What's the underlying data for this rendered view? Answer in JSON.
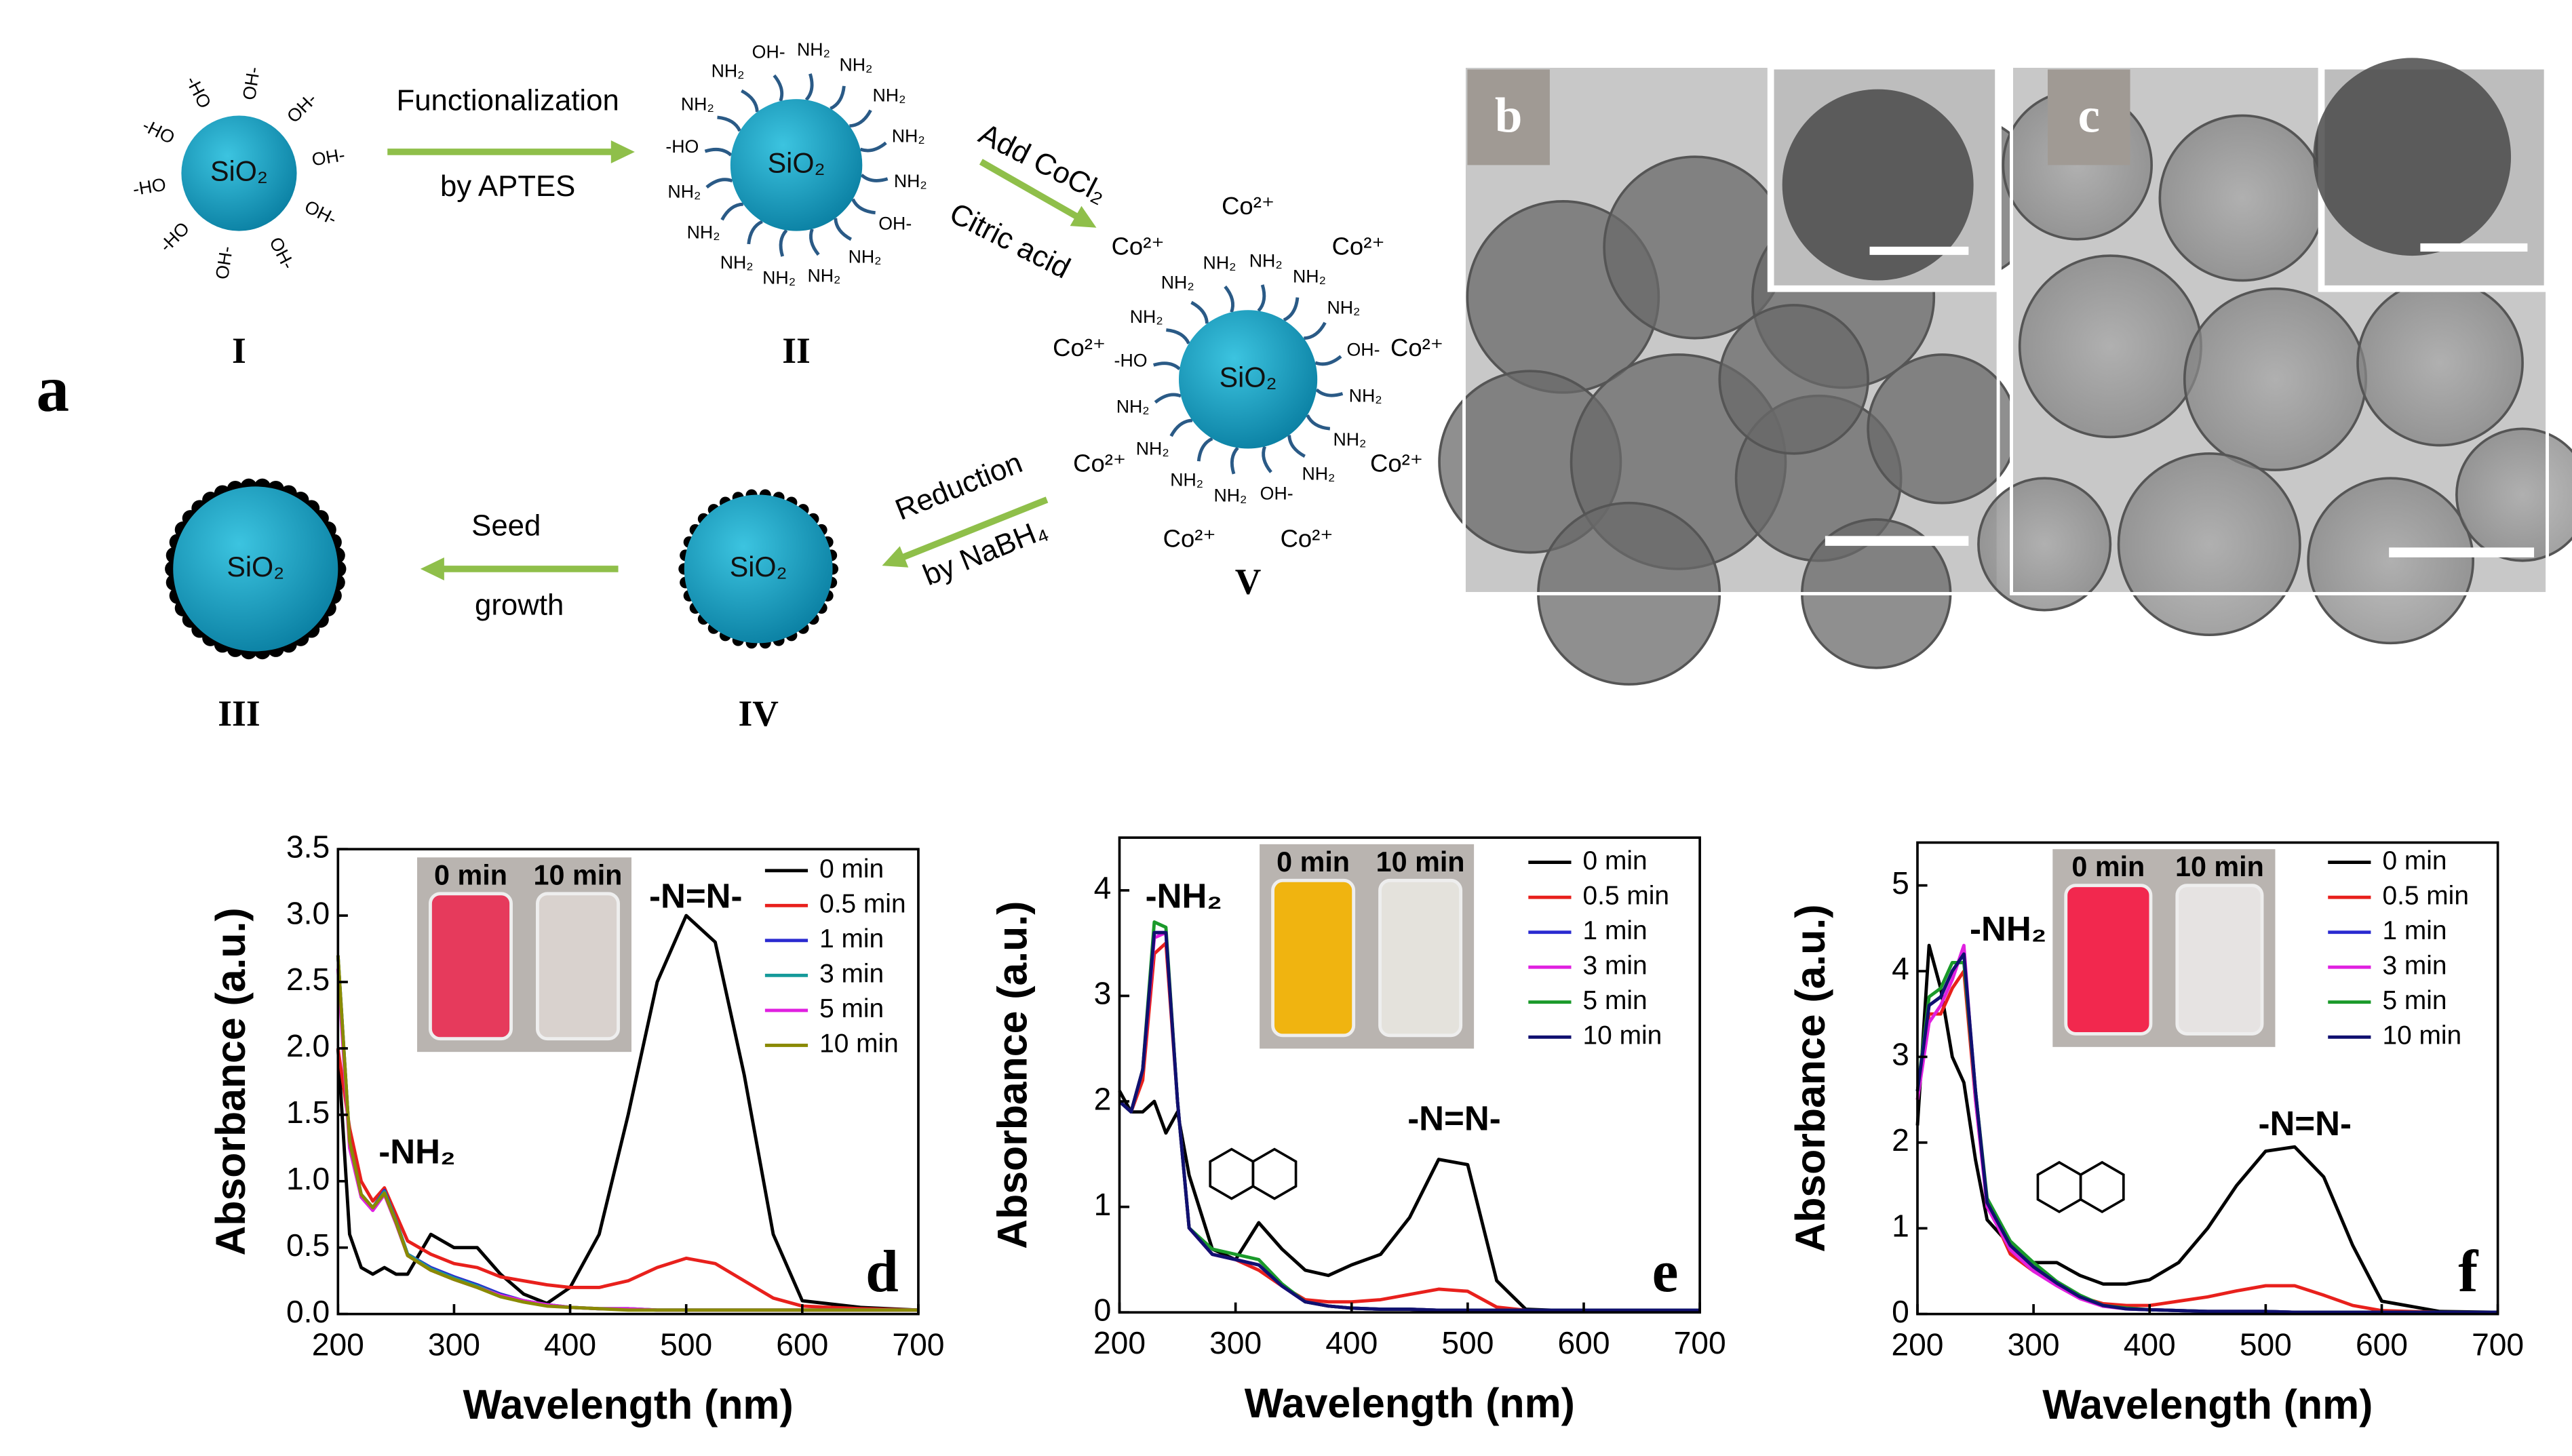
{
  "scheme": {
    "panel": "a",
    "particles": [
      {
        "numeral": "I",
        "core": "SiO₂",
        "groups": [
          "OH-",
          "OH-",
          "OH-",
          "OH-",
          "OH-",
          "OH-",
          "-HO",
          "-HO",
          "-HO",
          "-HO"
        ]
      },
      {
        "numeral": "II",
        "core": "SiO₂",
        "groups": [
          "NH₂",
          "NH₂",
          "NH₂",
          "NH₂",
          "NH₂",
          "OH-",
          "NH₂",
          "NH₂",
          "NH₂",
          "NH₂",
          "NH₂",
          "NH₂",
          "-HO",
          "NH₂",
          "NH₂",
          "OH-"
        ]
      },
      {
        "numeral": "V",
        "core": "SiO₂",
        "groups": [
          "NH₂",
          "NH₂",
          "NH₂",
          "OH-",
          "NH₂",
          "NH₂",
          "NH₂",
          "OH-",
          "NH₂",
          "NH₂",
          "NH₂",
          "NH₂",
          "-HO",
          "NH₂",
          "NH₂",
          "NH₂"
        ],
        "ions": [
          "Co²⁺",
          "Co²⁺",
          "Co²⁺",
          "Co²⁺",
          "Co²⁺",
          "Co²⁺",
          "Co²⁺",
          "Co²⁺",
          "Co²⁺"
        ]
      },
      {
        "numeral": "IV",
        "core": "SiO₂",
        "shell": true
      },
      {
        "numeral": "III",
        "core": "SiO₂",
        "shell": true
      }
    ],
    "arrows": [
      [
        "Functionalization",
        "by  APTES"
      ],
      [
        "Add CoCl₂",
        "Citric acid"
      ],
      [
        "Reduction",
        "by NaBH₄"
      ],
      [
        "Seed",
        "growth"
      ]
    ],
    "micrographs": [
      "b",
      "c"
    ]
  },
  "chart_data": [
    {
      "type": "line",
      "panel": "d",
      "xlabel": "Wavelength (nm)",
      "ylabel": "Absorbance (a.u.)",
      "annotations": [
        "-NH₂",
        "-N=N-"
      ],
      "inset_labels": [
        "0 min",
        "10 min"
      ],
      "inset_colors": [
        "#e63a5c",
        "#d9d2ce"
      ],
      "xlim": [
        200,
        700
      ],
      "xticks": [
        200,
        300,
        400,
        500,
        600,
        700
      ],
      "ylim": [
        0,
        3.5
      ],
      "yticks": [
        {
          "value": 0,
          "label": "0.0"
        },
        0.5,
        {
          "value": 1,
          "label": "1.0"
        },
        1.5,
        {
          "value": 2,
          "label": "2.0"
        },
        2.5,
        {
          "value": 3,
          "label": "3.0"
        },
        3.5
      ],
      "x": [
        200,
        210,
        220,
        230,
        240,
        250,
        260,
        280,
        300,
        320,
        340,
        360,
        380,
        400,
        425,
        450,
        475,
        500,
        525,
        550,
        575,
        600,
        650,
        700
      ],
      "series": [
        {
          "name": "0 min",
          "color": "#000000",
          "values": [
            2.0,
            0.6,
            0.35,
            0.3,
            0.35,
            0.3,
            0.3,
            0.6,
            0.5,
            0.5,
            0.3,
            0.15,
            0.08,
            0.2,
            0.6,
            1.5,
            2.5,
            3.0,
            2.8,
            1.8,
            0.6,
            0.1,
            0.05,
            0.03
          ]
        },
        {
          "name": "0.5 min",
          "color": "#e8201c",
          "values": [
            2.0,
            1.4,
            1.0,
            0.85,
            0.95,
            0.75,
            0.55,
            0.45,
            0.38,
            0.35,
            0.28,
            0.25,
            0.22,
            0.2,
            0.2,
            0.25,
            0.35,
            0.42,
            0.38,
            0.25,
            0.12,
            0.06,
            0.04,
            0.03
          ]
        },
        {
          "name": "1 min",
          "color": "#2a2ad0",
          "values": [
            2.7,
            1.3,
            0.9,
            0.8,
            0.93,
            0.7,
            0.45,
            0.35,
            0.28,
            0.22,
            0.15,
            0.1,
            0.07,
            0.05,
            0.04,
            0.04,
            0.03,
            0.03,
            0.03,
            0.03,
            0.03,
            0.03,
            0.03,
            0.03
          ]
        },
        {
          "name": "3 min",
          "color": "#159a9a",
          "values": [
            2.7,
            1.3,
            0.9,
            0.8,
            0.92,
            0.7,
            0.45,
            0.34,
            0.27,
            0.21,
            0.14,
            0.1,
            0.07,
            0.05,
            0.04,
            0.04,
            0.03,
            0.03,
            0.03,
            0.03,
            0.03,
            0.03,
            0.03,
            0.03
          ]
        },
        {
          "name": "5 min",
          "color": "#e020e0",
          "values": [
            2.6,
            1.25,
            0.88,
            0.78,
            0.9,
            0.68,
            0.44,
            0.33,
            0.26,
            0.2,
            0.14,
            0.1,
            0.07,
            0.05,
            0.04,
            0.04,
            0.03,
            0.03,
            0.03,
            0.03,
            0.03,
            0.03,
            0.03,
            0.03
          ]
        },
        {
          "name": "10 min",
          "color": "#8a8a00",
          "values": [
            2.7,
            1.3,
            0.9,
            0.8,
            0.91,
            0.69,
            0.44,
            0.33,
            0.26,
            0.2,
            0.13,
            0.09,
            0.06,
            0.05,
            0.04,
            0.03,
            0.03,
            0.03,
            0.03,
            0.03,
            0.03,
            0.03,
            0.03,
            0.03
          ]
        }
      ]
    },
    {
      "type": "line",
      "panel": "e",
      "xlabel": "Wavelength (nm)",
      "ylabel": "Absorbance (a.u.)",
      "annotations": [
        "-NH₂",
        "-N=N-"
      ],
      "inset_labels": [
        "0 min",
        "10 min"
      ],
      "inset_colors": [
        "#f0b410",
        "#e4e2dc"
      ],
      "xlim": [
        200,
        700
      ],
      "xticks": [
        200,
        300,
        400,
        500,
        600,
        700
      ],
      "ylim": [
        0,
        4.5
      ],
      "yticks": [
        0,
        1,
        2,
        3,
        4
      ],
      "x": [
        200,
        210,
        220,
        230,
        240,
        250,
        260,
        280,
        300,
        320,
        340,
        360,
        380,
        400,
        425,
        450,
        475,
        500,
        525,
        550,
        575,
        600,
        650,
        700
      ],
      "series": [
        {
          "name": "0 min",
          "color": "#000000",
          "values": [
            2.1,
            1.9,
            1.9,
            2.0,
            1.7,
            1.9,
            1.3,
            0.6,
            0.5,
            0.85,
            0.6,
            0.4,
            0.35,
            0.45,
            0.55,
            0.9,
            1.45,
            1.4,
            0.3,
            0.03,
            0.02,
            0.02,
            0.02,
            0.02
          ]
        },
        {
          "name": "0.5 min",
          "color": "#e8201c",
          "values": [
            2.0,
            1.9,
            2.2,
            3.4,
            3.5,
            2.0,
            0.8,
            0.55,
            0.5,
            0.4,
            0.25,
            0.12,
            0.1,
            0.1,
            0.12,
            0.17,
            0.22,
            0.2,
            0.05,
            0.02,
            0.02,
            0.02,
            0.02,
            0.02
          ]
        },
        {
          "name": "1 min",
          "color": "#2a2ad0",
          "values": [
            2.0,
            1.9,
            2.3,
            3.6,
            3.6,
            2.0,
            0.8,
            0.55,
            0.5,
            0.45,
            0.25,
            0.1,
            0.06,
            0.04,
            0.03,
            0.03,
            0.02,
            0.02,
            0.02,
            0.02,
            0.02,
            0.02,
            0.02,
            0.02
          ]
        },
        {
          "name": "3 min",
          "color": "#e020e0",
          "values": [
            2.0,
            1.9,
            2.3,
            3.55,
            3.6,
            2.0,
            0.8,
            0.55,
            0.5,
            0.45,
            0.25,
            0.1,
            0.06,
            0.04,
            0.03,
            0.03,
            0.02,
            0.02,
            0.02,
            0.02,
            0.02,
            0.02,
            0.02,
            0.02
          ]
        },
        {
          "name": "5 min",
          "color": "#1a9a2a",
          "values": [
            2.0,
            1.9,
            2.3,
            3.7,
            3.65,
            2.0,
            0.8,
            0.6,
            0.55,
            0.5,
            0.27,
            0.1,
            0.06,
            0.04,
            0.03,
            0.03,
            0.02,
            0.02,
            0.02,
            0.02,
            0.02,
            0.02,
            0.02,
            0.02
          ]
        },
        {
          "name": "10 min",
          "color": "#101070",
          "values": [
            2.0,
            1.9,
            2.3,
            3.6,
            3.6,
            2.0,
            0.8,
            0.55,
            0.5,
            0.45,
            0.25,
            0.1,
            0.06,
            0.04,
            0.03,
            0.03,
            0.02,
            0.02,
            0.02,
            0.02,
            0.02,
            0.02,
            0.02,
            0.02
          ]
        }
      ]
    },
    {
      "type": "line",
      "panel": "f",
      "xlabel": "Wavelength (nm)",
      "ylabel": "Absorbance (a.u.)",
      "annotations": [
        "-NH₂",
        "-N=N-"
      ],
      "inset_labels": [
        "0 min",
        "10 min"
      ],
      "inset_colors": [
        "#f2284e",
        "#e6e3e2"
      ],
      "xlim": [
        200,
        700
      ],
      "xticks": [
        200,
        300,
        400,
        500,
        600,
        700
      ],
      "ylim": [
        0,
        5.5
      ],
      "yticks": [
        0,
        1,
        2,
        3,
        4,
        5
      ],
      "x": [
        200,
        210,
        220,
        230,
        240,
        250,
        260,
        280,
        300,
        320,
        340,
        360,
        380,
        400,
        425,
        450,
        475,
        500,
        525,
        550,
        575,
        600,
        650,
        700
      ],
      "series": [
        {
          "name": "0 min",
          "color": "#000000",
          "values": [
            2.2,
            4.3,
            3.8,
            3.0,
            2.7,
            1.8,
            1.1,
            0.8,
            0.6,
            0.6,
            0.45,
            0.35,
            0.35,
            0.4,
            0.6,
            1.0,
            1.5,
            1.9,
            1.95,
            1.6,
            0.8,
            0.15,
            0.03,
            0.02
          ]
        },
        {
          "name": "0.5 min",
          "color": "#e8201c",
          "values": [
            2.5,
            3.5,
            3.5,
            3.8,
            4.0,
            2.5,
            1.3,
            0.7,
            0.5,
            0.35,
            0.2,
            0.12,
            0.1,
            0.1,
            0.15,
            0.2,
            0.27,
            0.33,
            0.33,
            0.22,
            0.1,
            0.04,
            0.02,
            0.02
          ]
        },
        {
          "name": "1 min",
          "color": "#2a2ad0",
          "values": [
            2.6,
            3.6,
            3.7,
            4.0,
            4.2,
            2.6,
            1.3,
            0.8,
            0.55,
            0.35,
            0.2,
            0.1,
            0.06,
            0.05,
            0.04,
            0.03,
            0.03,
            0.03,
            0.02,
            0.02,
            0.02,
            0.02,
            0.02,
            0.02
          ]
        },
        {
          "name": "3 min",
          "color": "#e020e0",
          "values": [
            2.5,
            3.4,
            3.6,
            3.9,
            4.3,
            2.5,
            1.25,
            0.75,
            0.5,
            0.33,
            0.18,
            0.09,
            0.06,
            0.05,
            0.04,
            0.03,
            0.03,
            0.03,
            0.02,
            0.02,
            0.02,
            0.02,
            0.02,
            0.02
          ]
        },
        {
          "name": "5 min",
          "color": "#1a9a2a",
          "values": [
            2.6,
            3.7,
            3.8,
            4.1,
            4.1,
            2.6,
            1.35,
            0.85,
            0.6,
            0.38,
            0.22,
            0.1,
            0.07,
            0.05,
            0.04,
            0.03,
            0.03,
            0.03,
            0.02,
            0.02,
            0.02,
            0.02,
            0.02,
            0.02
          ]
        },
        {
          "name": "10 min",
          "color": "#101070",
          "values": [
            2.6,
            3.6,
            3.7,
            4.0,
            4.2,
            2.6,
            1.3,
            0.8,
            0.55,
            0.36,
            0.2,
            0.1,
            0.06,
            0.05,
            0.04,
            0.03,
            0.03,
            0.03,
            0.02,
            0.02,
            0.02,
            0.02,
            0.02,
            0.02
          ]
        }
      ]
    }
  ]
}
